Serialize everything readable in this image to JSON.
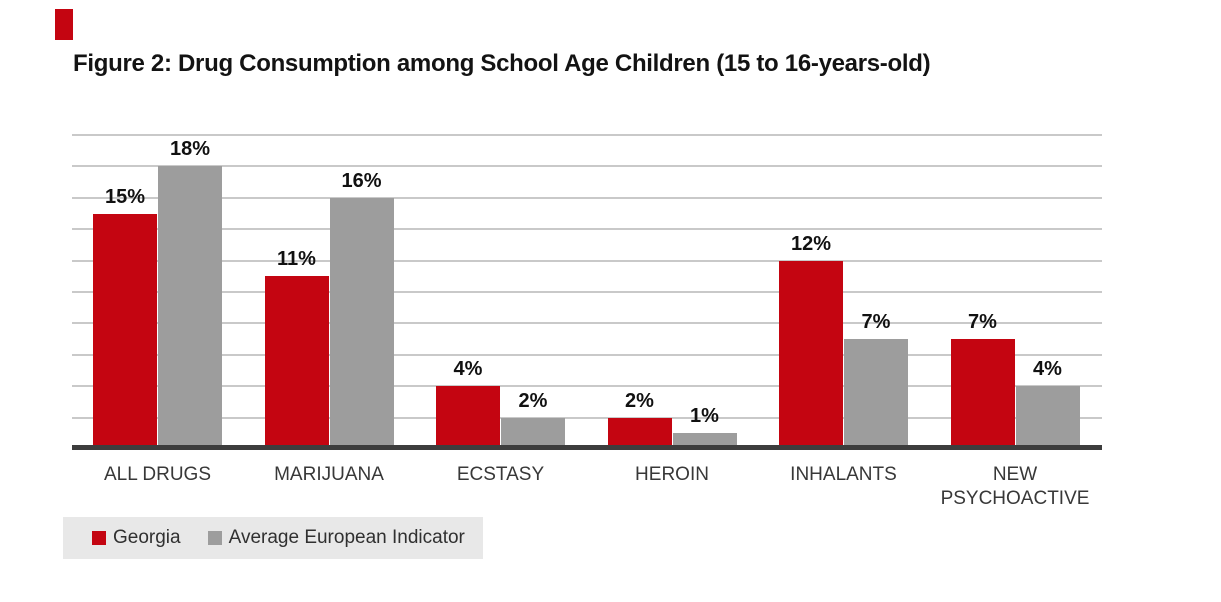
{
  "title": "Figure 2: Drug Consumption among School Age Children (15 to 16-years-old)",
  "chart_data": {
    "type": "bar",
    "categories": [
      "ALL DRUGS",
      "MARIJUANA",
      "ECSTASY",
      "HEROIN",
      "INHALANTS",
      "NEW PSYCHOACTIVE"
    ],
    "series": [
      {
        "name": "Georgia",
        "color": "#c40511",
        "values": [
          15,
          11,
          4,
          2,
          12,
          7
        ]
      },
      {
        "name": "Average European Indicator",
        "color": "#9d9d9d",
        "values": [
          18,
          16,
          2,
          1,
          7,
          4
        ]
      }
    ],
    "value_label_suffix": "%",
    "xlabel": "",
    "ylabel": "",
    "ylim": [
      0,
      20
    ],
    "gridline_step": 2,
    "grid": "horizontal-only",
    "y_axis_ticks_visible": false,
    "legend_position": "bottom-left"
  },
  "legend": {
    "items": [
      {
        "label": "Georgia",
        "color": "#c40511"
      },
      {
        "label": "Average European Indicator",
        "color": "#9d9d9d"
      }
    ]
  },
  "colors": {
    "bar_red": "#c40511",
    "bar_gray": "#9d9d9d",
    "gridline": "#c9c9c9",
    "axis_line": "#3d3d3d",
    "legend_background": "#e8e8e8",
    "accent_mark": "#c40511",
    "title_text": "#131313",
    "category_text": "#383838"
  }
}
